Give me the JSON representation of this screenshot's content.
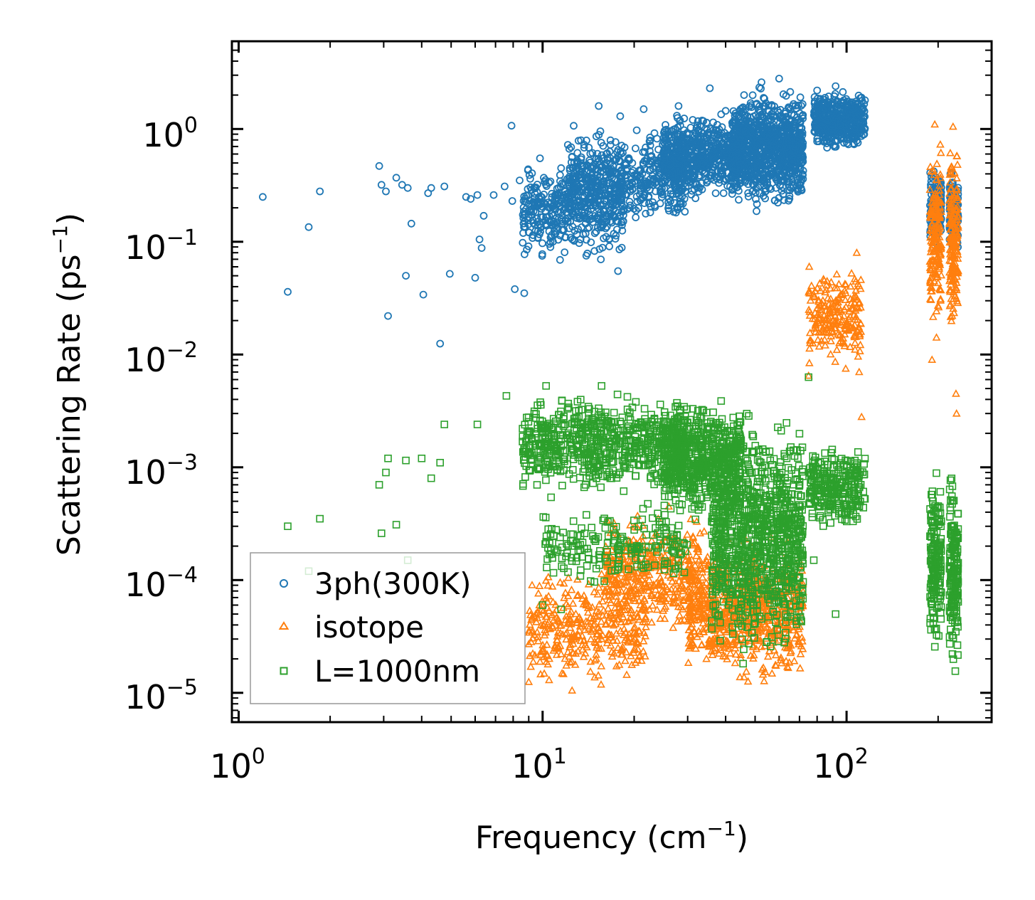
{
  "chart_data": {
    "type": "scatter",
    "xscale": "log",
    "yscale": "log",
    "xlim": [
      0.95,
      300
    ],
    "ylim": [
      5.5e-06,
      6.0
    ],
    "x_major_ticks": [
      1,
      10,
      100
    ],
    "y_major_ticks": [
      1e-05,
      0.0001,
      0.001,
      0.01,
      0.1,
      1
    ],
    "x_tick_labels": [
      {
        "base": "10",
        "exp": "0"
      },
      {
        "base": "10",
        "exp": "1"
      },
      {
        "base": "10",
        "exp": "2"
      }
    ],
    "y_tick_labels": [
      {
        "base": "10",
        "exp": "−5"
      },
      {
        "base": "10",
        "exp": "−4"
      },
      {
        "base": "10",
        "exp": "−3"
      },
      {
        "base": "10",
        "exp": "−2"
      },
      {
        "base": "10",
        "exp": "−1"
      },
      {
        "base": "10",
        "exp": "0"
      }
    ],
    "xlabel": {
      "text": "Frequency (cm",
      "sup": "−1",
      "suffix": ")"
    },
    "ylabel": {
      "text": "Scattering Rate (ps",
      "sup": "−1",
      "suffix": ")"
    },
    "legend_position": "lower-left",
    "series": [
      {
        "name": "3ph(300K)",
        "marker": "circle",
        "color": "#1f77b4",
        "anchors": [
          [
            1.2,
            0.25
          ],
          [
            1.45,
            0.036
          ],
          [
            1.7,
            0.135
          ],
          [
            1.85,
            0.28
          ],
          [
            2.9,
            0.47
          ],
          [
            2.95,
            0.32
          ],
          [
            3.05,
            0.28
          ],
          [
            3.1,
            0.022
          ],
          [
            3.3,
            0.37
          ],
          [
            3.45,
            0.32
          ],
          [
            3.55,
            0.05
          ],
          [
            3.6,
            0.3
          ],
          [
            3.7,
            0.145
          ],
          [
            4.05,
            0.034
          ],
          [
            4.2,
            0.27
          ],
          [
            4.3,
            0.3
          ],
          [
            4.6,
            0.0125
          ],
          [
            4.75,
            0.31
          ],
          [
            4.95,
            0.052
          ],
          [
            5.6,
            0.25
          ],
          [
            5.8,
            0.24
          ],
          [
            6.0,
            0.048
          ],
          [
            6.1,
            0.26
          ],
          [
            6.2,
            0.105
          ],
          [
            6.3,
            0.088
          ],
          [
            6.4,
            0.17
          ],
          [
            6.9,
            0.26
          ],
          [
            7.5,
            0.31
          ],
          [
            7.9,
            1.07
          ],
          [
            7.95,
            0.23
          ],
          [
            8.1,
            0.038
          ],
          [
            8.4,
            0.35
          ],
          [
            8.6,
            0.098
          ],
          [
            8.7,
            0.035
          ],
          [
            9.8,
            0.55
          ],
          [
            11.5,
            0.45
          ],
          [
            13.6,
            0.4
          ],
          [
            15.3,
            1.6
          ],
          [
            16.2,
            0.6
          ],
          [
            17.7,
            0.055
          ],
          [
            18.0,
            1.3
          ],
          [
            21.5,
            1.5
          ],
          [
            28.0,
            1.6
          ],
          [
            35.5,
            2.3
          ],
          [
            40.0,
            1.45
          ],
          [
            46.0,
            2.0
          ],
          [
            52.5,
            2.6
          ],
          [
            60.0,
            2.8
          ],
          [
            80.0,
            2.2
          ],
          [
            92.0,
            2.4
          ],
          [
            100.0,
            1.6
          ],
          [
            112.0,
            1.9
          ]
        ],
        "bands": [
          {
            "x": [
              8.6,
              18.5
            ],
            "y": [
              0.06,
              0.6
            ],
            "n": 420
          },
          {
            "x": [
              12.0,
              30.0
            ],
            "y": [
              0.12,
              1.2
            ],
            "n": 500
          },
          {
            "x": [
              25.0,
              45.0
            ],
            "y": [
              0.22,
              1.5
            ],
            "n": 600
          },
          {
            "x": [
              42.0,
              72.0
            ],
            "y": [
              0.17,
              2.7
            ],
            "n": 950
          },
          {
            "x": [
              78.0,
              115.0
            ],
            "y": [
              0.6,
              2.4
            ],
            "n": 450
          },
          {
            "x": [
              188.0,
              205.0
            ],
            "y": [
              0.08,
              0.55
            ],
            "n": 150
          },
          {
            "x": [
              218.0,
              233.0
            ],
            "y": [
              0.07,
              0.5
            ],
            "n": 150
          }
        ]
      },
      {
        "name": "isotope",
        "marker": "triangle",
        "color": "#ff7f0e",
        "anchors": [
          [
            9.0,
            1.25e-05
          ],
          [
            10.5,
            1.3e-05
          ],
          [
            12.5,
            1.05e-05
          ],
          [
            13.5,
            3.2e-05
          ],
          [
            19.0,
            0.00013
          ],
          [
            24.0,
            0.00035
          ],
          [
            26.0,
            0.00045
          ],
          [
            29.0,
            8e-05
          ],
          [
            34.0,
            0.00027
          ],
          [
            75.0,
            0.0065
          ],
          [
            90.0,
            0.02
          ],
          [
            108.0,
            0.08
          ],
          [
            110.0,
            0.007
          ],
          [
            112.0,
            0.0028
          ],
          [
            191.0,
            0.009
          ],
          [
            195.0,
            1.1
          ],
          [
            224.0,
            1.05
          ],
          [
            229.0,
            0.0045
          ],
          [
            230.0,
            0.003
          ]
        ],
        "bands": [
          {
            "x": [
              9.0,
              22.0
            ],
            "y": [
              1e-05,
              0.00015
            ],
            "n": 360
          },
          {
            "x": [
              16.0,
              33.0
            ],
            "y": [
              2.5e-05,
              0.00045
            ],
            "n": 380
          },
          {
            "x": [
              30.0,
              72.0
            ],
            "y": [
              1e-05,
              0.0003
            ],
            "n": 750
          },
          {
            "x": [
              75.0,
              112.0
            ],
            "y": [
              0.007,
              0.07
            ],
            "n": 220
          },
          {
            "x": [
              188.0,
              205.0
            ],
            "y": [
              0.012,
              0.95
            ],
            "n": 170
          },
          {
            "x": [
              218.0,
              233.0
            ],
            "y": [
              0.01,
              0.9
            ],
            "n": 170
          }
        ]
      },
      {
        "name": "L=1000nm",
        "marker": "square",
        "color": "#2ca02c",
        "anchors": [
          [
            1.45,
            0.0003
          ],
          [
            1.7,
            0.00012
          ],
          [
            1.85,
            0.00035
          ],
          [
            2.9,
            0.0007
          ],
          [
            2.95,
            0.00026
          ],
          [
            3.1,
            0.0012
          ],
          [
            3.05,
            0.0009
          ],
          [
            3.3,
            0.00031
          ],
          [
            3.55,
            0.00115
          ],
          [
            3.6,
            0.00015
          ],
          [
            4.0,
            0.0012
          ],
          [
            4.3,
            0.0008
          ],
          [
            4.6,
            0.0011
          ],
          [
            4.75,
            0.0024
          ],
          [
            6.1,
            0.0024
          ],
          [
            7.6,
            0.0043
          ],
          [
            10.0,
            6e-05
          ],
          [
            11.5,
            5.5e-05
          ],
          [
            75.0,
            0.0063
          ],
          [
            78.0,
            0.00015
          ],
          [
            92.0,
            5e-05
          ]
        ],
        "bands": [
          {
            "x": [
              8.5,
              30.0
            ],
            "y": [
              0.0005,
              0.0055
            ],
            "n": 700
          },
          {
            "x": [
              10.0,
              30.0
            ],
            "y": [
              8e-05,
              0.0006
            ],
            "n": 200
          },
          {
            "x": [
              25.0,
              45.0
            ],
            "y": [
              0.0003,
              0.0045
            ],
            "n": 600
          },
          {
            "x": [
              36.0,
              72.0
            ],
            "y": [
              1.5e-05,
              0.004
            ],
            "n": 1000
          },
          {
            "x": [
              75.0,
              115.0
            ],
            "y": [
              0.00025,
              0.0018
            ],
            "n": 280
          },
          {
            "x": [
              188.0,
              205.0
            ],
            "y": [
              1.6e-05,
              0.0013
            ],
            "n": 170
          },
          {
            "x": [
              218.0,
              233.0
            ],
            "y": [
              1.2e-05,
              0.0013
            ],
            "n": 170
          }
        ]
      }
    ]
  }
}
